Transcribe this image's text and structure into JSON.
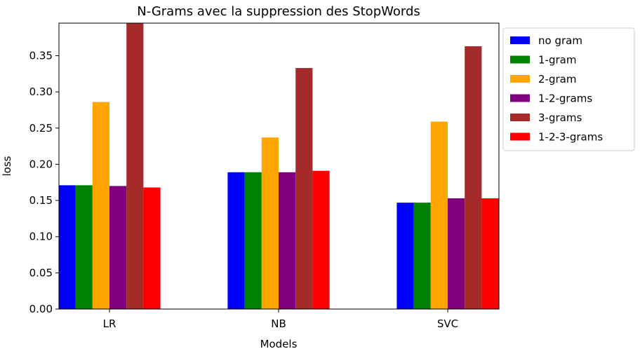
{
  "chart_data": {
    "type": "bar",
    "title": "N-Grams avec la suppression des StopWords",
    "xlabel": "Models",
    "ylabel": "loss",
    "categories": [
      "LR",
      "NB",
      "SVC"
    ],
    "ylim": [
      0,
      0.395
    ],
    "yticks": [
      "0.00",
      "0.05",
      "0.10",
      "0.15",
      "0.20",
      "0.25",
      "0.30",
      "0.35"
    ],
    "grid": false,
    "legend_position": "outside-top-right",
    "series": [
      {
        "name": "no gram",
        "color": "#0000ff",
        "values": [
          0.171,
          0.189,
          0.147
        ]
      },
      {
        "name": "1-gram",
        "color": "#008000",
        "values": [
          0.171,
          0.189,
          0.147
        ]
      },
      {
        "name": "2-gram",
        "color": "#ffa500",
        "values": [
          0.286,
          0.237,
          0.259
        ]
      },
      {
        "name": "1-2-grams",
        "color": "#800080",
        "values": [
          0.17,
          0.189,
          0.153
        ]
      },
      {
        "name": "3-grams",
        "color": "#a52a2a",
        "values": [
          0.4,
          0.333,
          0.363
        ]
      },
      {
        "name": "1-2-3-grams",
        "color": "#ff0000",
        "values": [
          0.168,
          0.191,
          0.153
        ]
      }
    ]
  }
}
